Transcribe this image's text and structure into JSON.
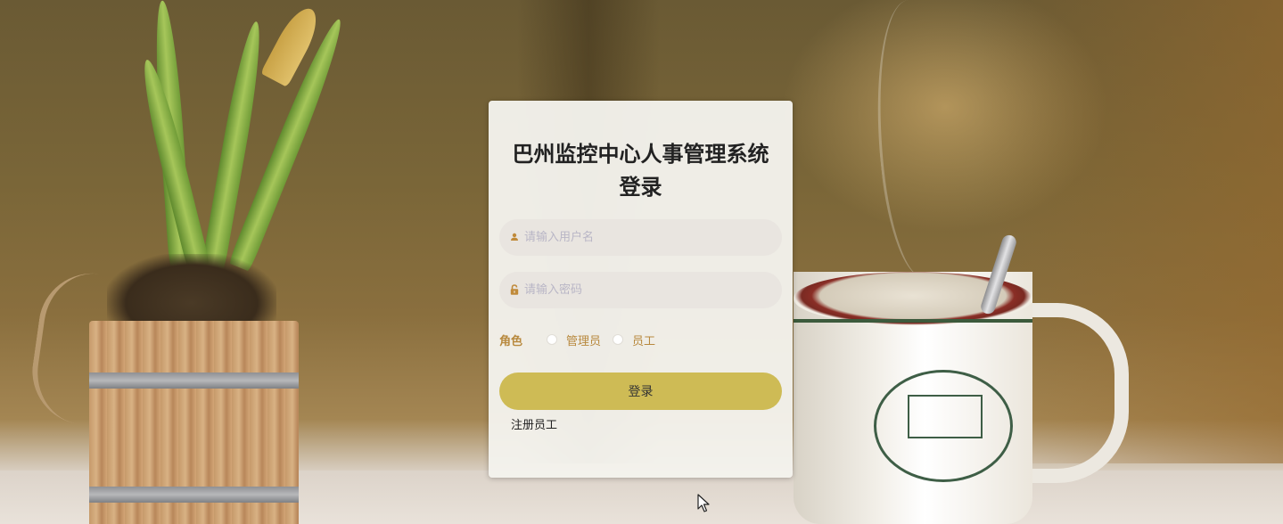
{
  "login": {
    "title": "巴州监控中心人事管理系统登录",
    "username": {
      "placeholder": "请输入用户名",
      "value": "",
      "icon": "user-icon"
    },
    "password": {
      "placeholder": "请输入密码",
      "value": "",
      "icon": "lock-icon"
    },
    "role": {
      "label": "角色",
      "options": [
        "管理员",
        "员工"
      ],
      "selected": null
    },
    "login_button": "登录",
    "register_link": "注册员工"
  },
  "colors": {
    "accent_button": "#cebb55",
    "role_text": "#b8893e",
    "icon": "#c08a3a",
    "placeholder": "#b9b6c6"
  }
}
